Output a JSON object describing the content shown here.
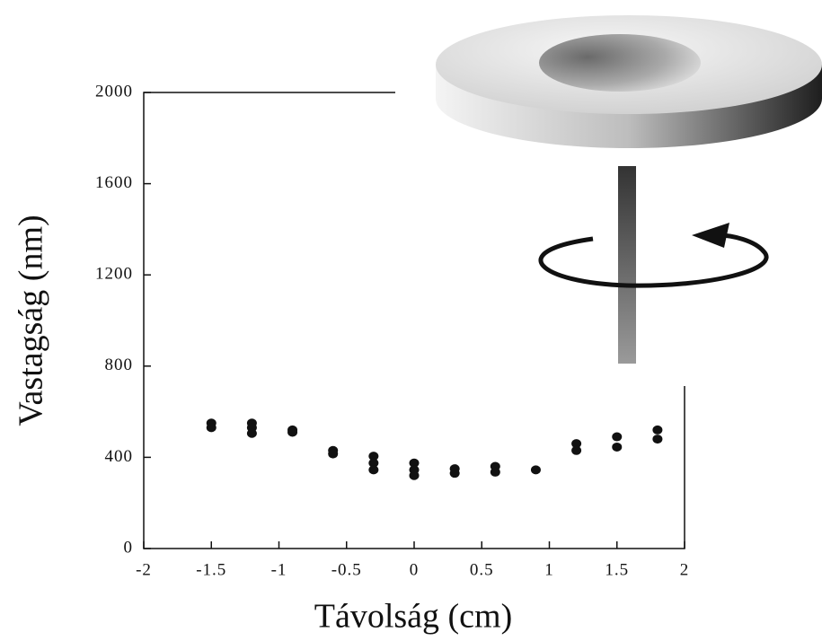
{
  "chart_data": {
    "type": "scatter",
    "xlabel": "Távolság (cm)",
    "ylabel": "Vastagság (nm)",
    "x": [
      -1.5,
      -1.5,
      -1.2,
      -1.2,
      -1.2,
      -0.9,
      -0.9,
      -0.6,
      -0.6,
      -0.3,
      -0.3,
      -0.3,
      0,
      0,
      0,
      0.3,
      0.3,
      0.6,
      0.6,
      0.9,
      1.2,
      1.2,
      1.5,
      1.5,
      1.8,
      1.8
    ],
    "values": [
      550,
      530,
      550,
      530,
      505,
      520,
      510,
      430,
      415,
      405,
      375,
      345,
      375,
      345,
      320,
      350,
      330,
      360,
      335,
      345,
      460,
      430,
      490,
      445,
      520,
      480
    ],
    "color": "#111111",
    "xlim": [
      -2,
      2
    ],
    "xticks": [
      -2,
      -1.5,
      -1,
      -0.5,
      0,
      0.5,
      1,
      1.5,
      2
    ],
    "ylim": [
      0,
      2000
    ],
    "yticks": [
      0,
      400,
      800,
      1200,
      1600,
      2000
    ]
  }
}
